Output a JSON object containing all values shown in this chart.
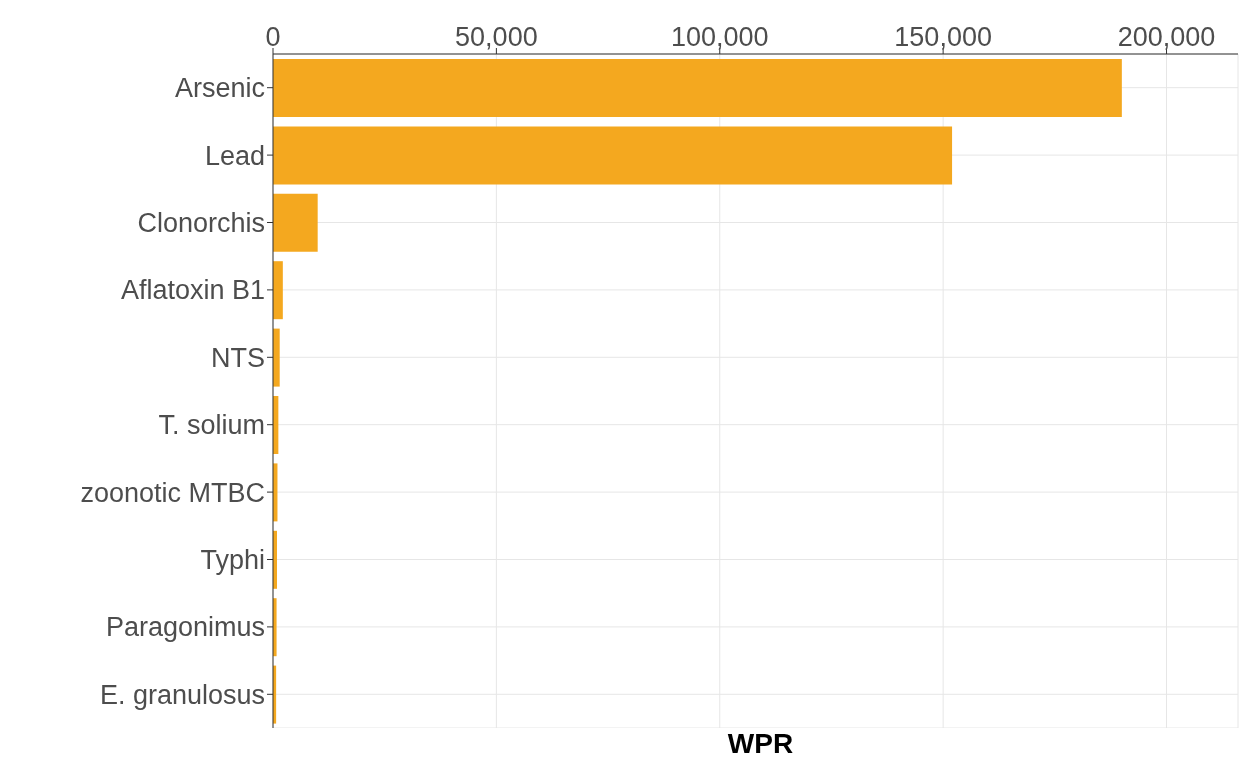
{
  "chart_data": {
    "type": "bar",
    "orientation": "horizontal",
    "xlabel": "WPR",
    "categories": [
      "Arsenic",
      "Lead",
      "Clonorchis",
      "Aflatoxin B1",
      "NTS",
      "T. solium",
      "zoonotic MTBC",
      "Typhi",
      "Paragonimus",
      "E. granulosus"
    ],
    "values": [
      190000,
      152000,
      10000,
      2200,
      1500,
      1200,
      1000,
      900,
      800,
      700
    ],
    "color": "#f4a81f",
    "xlim": [
      0,
      216000
    ],
    "xticks": [
      0,
      {
        "value": 50000,
        "label": "50,000"
      },
      {
        "value": 100000,
        "label": "100,000"
      },
      {
        "value": 150000,
        "label": "150,000"
      },
      {
        "value": 200000,
        "label": "200,000"
      }
    ],
    "grid": true,
    "legend": false
  }
}
